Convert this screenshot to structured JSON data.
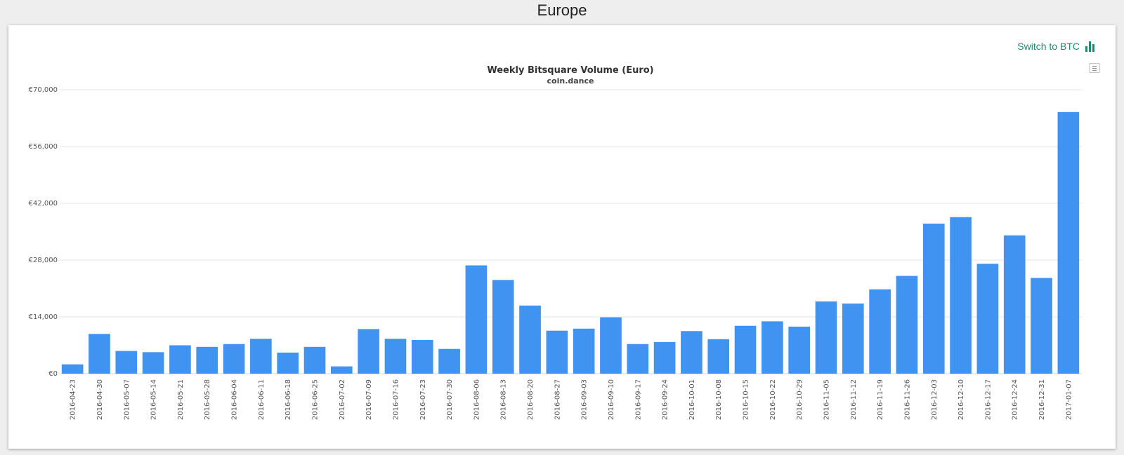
{
  "page": {
    "title": "Europe"
  },
  "toolbar": {
    "switch_label": "Switch to BTC"
  },
  "icons": {
    "switch": "bar-chart-icon",
    "menu": "hamburger-menu-icon"
  },
  "colors": {
    "bar": "#4193f2",
    "accent": "#1a8c73",
    "grid": "#e6e6e6",
    "axis_text": "#555555"
  },
  "chart_data": {
    "type": "bar",
    "title": "Weekly Bitsquare Volume (Euro)",
    "subtitle": "coin.dance",
    "xlabel": "",
    "ylabel": "",
    "ylim": [
      0,
      70000
    ],
    "yticks": [
      0,
      14000,
      28000,
      42000,
      56000,
      70000
    ],
    "ytick_labels": [
      "€0",
      "€14,000",
      "€28,000",
      "€42,000",
      "€56,000",
      "€70,000"
    ],
    "grid": true,
    "legend": "none",
    "categories": [
      "2016-04-23",
      "2016-04-30",
      "2016-05-07",
      "2016-05-14",
      "2016-05-21",
      "2016-05-28",
      "2016-06-04",
      "2016-06-11",
      "2016-06-18",
      "2016-06-25",
      "2016-07-02",
      "2016-07-09",
      "2016-07-16",
      "2016-07-23",
      "2016-07-30",
      "2016-08-06",
      "2016-08-13",
      "2016-08-20",
      "2016-08-27",
      "2016-09-03",
      "2016-09-10",
      "2016-09-17",
      "2016-09-24",
      "2016-10-01",
      "2016-10-08",
      "2016-10-15",
      "2016-10-22",
      "2016-10-29",
      "2016-11-05",
      "2016-11-12",
      "2016-11-19",
      "2016-11-26",
      "2016-12-03",
      "2016-12-10",
      "2016-12-17",
      "2016-12-24",
      "2016-12-31",
      "2017-01-07"
    ],
    "values": [
      2300,
      9800,
      5600,
      5300,
      7000,
      6600,
      7300,
      8600,
      5200,
      6600,
      1800,
      11000,
      8600,
      8300,
      6100,
      26700,
      23100,
      16800,
      10600,
      11100,
      13900,
      7300,
      7800,
      10500,
      8500,
      11800,
      12900,
      11600,
      17800,
      17300,
      20800,
      24100,
      37000,
      38600,
      27100,
      34100,
      23600,
      64500
    ]
  }
}
